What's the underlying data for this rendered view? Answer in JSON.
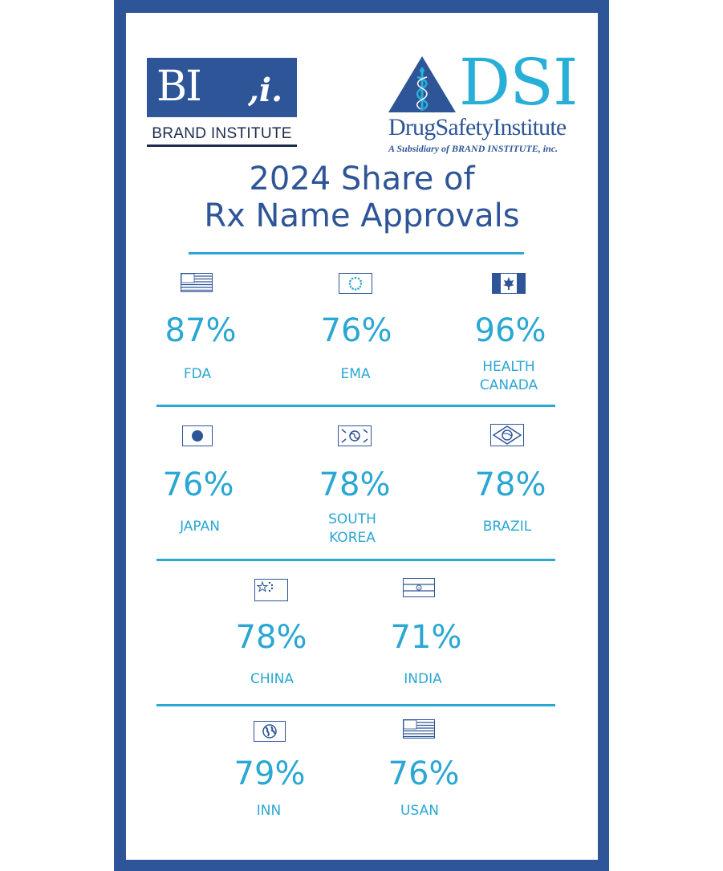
{
  "logos": {
    "bi_letters": "BI",
    "bi_mark": ",i.",
    "bi_name": "BRAND INSTITUTE",
    "dsi_letters": "DSI",
    "dsi_name": "DrugSafetyInstitute",
    "dsi_tagline": "A Subsidiary of BRAND INSTITUTE, inc."
  },
  "title": {
    "line1": "2024 Share of",
    "line2": "Rx Name Approvals"
  },
  "colors": {
    "frame": "#2e5597",
    "accent": "#2aa7d3",
    "title": "#2e5597"
  },
  "agencies": [
    {
      "icon": "us-flag-icon",
      "value": "87%",
      "label_line1": "FDA",
      "label_line2": ""
    },
    {
      "icon": "eu-flag-icon",
      "value": "76%",
      "label_line1": "EMA",
      "label_line2": ""
    },
    {
      "icon": "canada-flag-icon",
      "value": "96%",
      "label_line1": "HEALTH",
      "label_line2": "CANADA"
    },
    {
      "icon": "japan-flag-icon",
      "value": "76%",
      "label_line1": "JAPAN",
      "label_line2": ""
    },
    {
      "icon": "south-korea-flag-icon",
      "value": "78%",
      "label_line1": "SOUTH",
      "label_line2": "KOREA"
    },
    {
      "icon": "brazil-flag-icon",
      "value": "78%",
      "label_line1": "BRAZIL",
      "label_line2": ""
    },
    {
      "icon": "china-flag-icon",
      "value": "78%",
      "label_line1": "CHINA",
      "label_line2": ""
    },
    {
      "icon": "india-flag-icon",
      "value": "71%",
      "label_line1": "INDIA",
      "label_line2": ""
    },
    {
      "icon": "globe-flag-icon",
      "value": "79%",
      "label_line1": "INN",
      "label_line2": ""
    },
    {
      "icon": "us-flag-icon",
      "value": "76%",
      "label_line1": "USAN",
      "label_line2": ""
    }
  ]
}
